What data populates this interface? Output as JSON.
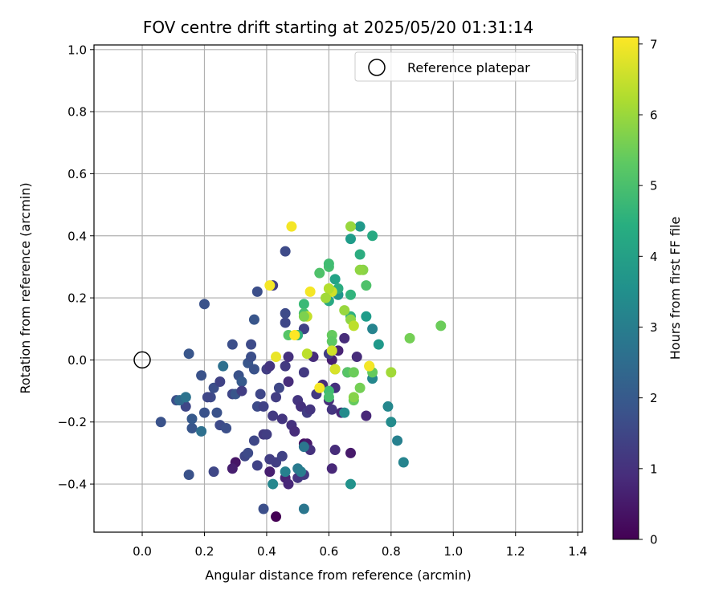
{
  "chart_data": {
    "type": "scatter",
    "title": "FOV centre drift starting at 2025/05/20 01:31:14",
    "xlabel": "Angular distance from reference (arcmin)",
    "ylabel": "Rotation from reference (arcmin)",
    "xlim": [
      -0.155,
      1.415
    ],
    "ylim": [
      -0.555,
      1.015
    ],
    "xticks": [
      "0.0",
      "0.2",
      "0.4",
      "0.6",
      "0.8",
      "1.0",
      "1.2",
      "1.4"
    ],
    "xtick_values": [
      0.0,
      0.2,
      0.4,
      0.6,
      0.8,
      1.0,
      1.2,
      1.4
    ],
    "yticks": [
      "−0.4",
      "−0.2",
      "0.0",
      "0.2",
      "0.4",
      "0.6",
      "0.8",
      "1.0"
    ],
    "ytick_values": [
      -0.4,
      -0.2,
      0.0,
      0.2,
      0.4,
      0.6,
      0.8,
      1.0
    ],
    "grid": true,
    "legend": {
      "position": "top-right",
      "entries": [
        "Reference platepar"
      ]
    },
    "reference": {
      "x": 0.0,
      "y": 0.0
    },
    "colorbar": {
      "label": "Hours from first FF file",
      "range": [
        0,
        7.1
      ],
      "ticks": [
        "0",
        "1",
        "2",
        "3",
        "4",
        "5",
        "6",
        "7"
      ],
      "tick_values": [
        0,
        1,
        2,
        3,
        4,
        5,
        6,
        7
      ],
      "colormap": "viridis"
    },
    "points": [
      [
        0.43,
        -0.505,
        0.0
      ],
      [
        0.52,
        -0.27,
        0.3
      ],
      [
        0.53,
        -0.27,
        0.5
      ],
      [
        0.3,
        -0.33,
        0.4
      ],
      [
        0.29,
        -0.35,
        0.6
      ],
      [
        0.46,
        -0.38,
        0.7
      ],
      [
        0.41,
        -0.36,
        0.6
      ],
      [
        0.47,
        -0.4,
        0.8
      ],
      [
        0.67,
        -0.3,
        0.5
      ],
      [
        0.61,
        -0.35,
        0.8
      ],
      [
        0.62,
        -0.29,
        0.9
      ],
      [
        0.54,
        -0.29,
        1.0
      ],
      [
        0.5,
        -0.38,
        1.1
      ],
      [
        0.52,
        -0.37,
        1.2
      ],
      [
        0.43,
        -0.33,
        1.3
      ],
      [
        0.45,
        -0.31,
        1.4
      ],
      [
        0.41,
        -0.32,
        1.3
      ],
      [
        0.39,
        -0.24,
        1.2
      ],
      [
        0.4,
        -0.24,
        1.3
      ],
      [
        0.36,
        -0.26,
        1.5
      ],
      [
        0.37,
        -0.34,
        1.4
      ],
      [
        0.33,
        -0.31,
        1.5
      ],
      [
        0.34,
        -0.3,
        1.6
      ],
      [
        0.39,
        -0.48,
        1.7
      ],
      [
        0.15,
        -0.37,
        1.8
      ],
      [
        0.23,
        -0.36,
        1.5
      ],
      [
        0.25,
        -0.21,
        1.6
      ],
      [
        0.27,
        -0.22,
        1.7
      ],
      [
        0.24,
        -0.17,
        1.8
      ],
      [
        0.16,
        -0.22,
        1.9
      ],
      [
        0.16,
        -0.19,
        2.0
      ],
      [
        0.19,
        -0.23,
        2.6
      ],
      [
        0.06,
        -0.2,
        1.8
      ],
      [
        0.11,
        -0.13,
        1.7
      ],
      [
        0.14,
        -0.15,
        1.5
      ],
      [
        0.14,
        -0.12,
        2.5
      ],
      [
        0.2,
        -0.17,
        1.8
      ],
      [
        0.22,
        -0.12,
        1.6
      ],
      [
        0.23,
        -0.09,
        1.7
      ],
      [
        0.25,
        -0.07,
        1.4
      ],
      [
        0.29,
        -0.11,
        1.5
      ],
      [
        0.3,
        -0.11,
        1.9
      ],
      [
        0.31,
        -0.05,
        1.8
      ],
      [
        0.32,
        -0.07,
        2.0
      ],
      [
        0.32,
        -0.1,
        1.3
      ],
      [
        0.34,
        -0.01,
        1.9
      ],
      [
        0.35,
        0.05,
        1.6
      ],
      [
        0.35,
        0.01,
        1.7
      ],
      [
        0.36,
        -0.03,
        1.8
      ],
      [
        0.37,
        -0.15,
        1.6
      ],
      [
        0.38,
        -0.11,
        1.5
      ],
      [
        0.39,
        -0.15,
        1.4
      ],
      [
        0.4,
        -0.03,
        1.3
      ],
      [
        0.41,
        -0.02,
        1.1
      ],
      [
        0.42,
        -0.18,
        1.2
      ],
      [
        0.43,
        -0.12,
        1.3
      ],
      [
        0.44,
        -0.09,
        1.5
      ],
      [
        0.45,
        -0.19,
        1.1
      ],
      [
        0.46,
        -0.02,
        1.2
      ],
      [
        0.47,
        0.01,
        1.0
      ],
      [
        0.47,
        -0.07,
        0.9
      ],
      [
        0.48,
        -0.21,
        1.0
      ],
      [
        0.49,
        -0.23,
        0.9
      ],
      [
        0.5,
        -0.13,
        1.1
      ],
      [
        0.51,
        -0.15,
        1.0
      ],
      [
        0.52,
        -0.04,
        1.2
      ],
      [
        0.53,
        -0.17,
        1.3
      ],
      [
        0.54,
        -0.16,
        1.1
      ],
      [
        0.55,
        0.01,
        0.9
      ],
      [
        0.56,
        -0.11,
        1.2
      ],
      [
        0.58,
        -0.08,
        0.9
      ],
      [
        0.6,
        -0.13,
        0.9
      ],
      [
        0.61,
        -0.16,
        1.1
      ],
      [
        0.62,
        -0.09,
        1.0
      ],
      [
        0.63,
        0.03,
        0.7
      ],
      [
        0.64,
        -0.17,
        0.8
      ],
      [
        0.65,
        0.07,
        0.9
      ],
      [
        0.66,
        -0.04,
        1.0
      ],
      [
        0.69,
        0.01,
        0.9
      ],
      [
        0.72,
        -0.18,
        0.8
      ],
      [
        0.61,
        0.0,
        0.6
      ],
      [
        0.6,
        0.02,
        1.3
      ],
      [
        0.52,
        0.1,
        1.2
      ],
      [
        0.52,
        0.1,
        1.4
      ],
      [
        0.46,
        0.12,
        1.5
      ],
      [
        0.46,
        0.15,
        1.6
      ],
      [
        0.42,
        0.24,
        1.3
      ],
      [
        0.37,
        0.22,
        1.7
      ],
      [
        0.46,
        0.35,
        1.6
      ],
      [
        0.36,
        0.13,
        1.9
      ],
      [
        0.2,
        0.18,
        1.8
      ],
      [
        0.15,
        0.02,
        1.9
      ],
      [
        0.19,
        -0.05,
        1.8
      ],
      [
        0.29,
        0.05,
        1.7
      ],
      [
        0.26,
        -0.02,
        2.6
      ],
      [
        0.21,
        -0.12,
        1.5
      ],
      [
        0.12,
        -0.13,
        2.4
      ],
      [
        0.14,
        -0.12,
        2.7
      ],
      [
        0.52,
        -0.28,
        2.8
      ],
      [
        0.5,
        -0.35,
        2.9
      ],
      [
        0.51,
        -0.36,
        3.0
      ],
      [
        0.42,
        -0.4,
        3.3
      ],
      [
        0.46,
        -0.36,
        3.1
      ],
      [
        0.52,
        -0.48,
        2.8
      ],
      [
        0.67,
        -0.4,
        3.6
      ],
      [
        0.8,
        -0.2,
        3.4
      ],
      [
        0.79,
        -0.15,
        3.3
      ],
      [
        0.82,
        -0.26,
        3.1
      ],
      [
        0.84,
        -0.33,
        3.2
      ],
      [
        0.65,
        -0.17,
        3.4
      ],
      [
        0.74,
        -0.06,
        3.3
      ],
      [
        0.74,
        0.1,
        3.2
      ],
      [
        0.72,
        0.14,
        3.9
      ],
      [
        0.76,
        0.05,
        3.8
      ],
      [
        0.63,
        0.21,
        3.7
      ],
      [
        0.62,
        0.26,
        4.1
      ],
      [
        0.63,
        0.23,
        4.4
      ],
      [
        0.6,
        0.19,
        4.3
      ],
      [
        0.67,
        0.14,
        4.5
      ],
      [
        0.67,
        0.21,
        4.6
      ],
      [
        0.7,
        0.34,
        4.4
      ],
      [
        0.67,
        0.39,
        3.9
      ],
      [
        0.7,
        0.43,
        3.8
      ],
      [
        0.74,
        0.4,
        4.3
      ],
      [
        0.6,
        0.3,
        5.0
      ],
      [
        0.6,
        0.31,
        4.9
      ],
      [
        0.57,
        0.28,
        5.1
      ],
      [
        0.52,
        0.18,
        4.8
      ],
      [
        0.52,
        0.15,
        5.0
      ],
      [
        0.5,
        0.08,
        4.5
      ],
      [
        0.47,
        0.08,
        5.2
      ],
      [
        0.61,
        0.08,
        5.4
      ],
      [
        0.61,
        0.06,
        5.3
      ],
      [
        0.6,
        -0.1,
        4.9
      ],
      [
        0.6,
        -0.12,
        5.0
      ],
      [
        0.62,
        -0.03,
        4.7
      ],
      [
        0.66,
        -0.04,
        5.2
      ],
      [
        0.68,
        -0.13,
        5.4
      ],
      [
        0.68,
        -0.12,
        5.8
      ],
      [
        0.68,
        -0.04,
        5.5
      ],
      [
        0.7,
        -0.09,
        5.6
      ],
      [
        0.73,
        -0.02,
        6.0
      ],
      [
        0.74,
        -0.04,
        5.4
      ],
      [
        0.8,
        -0.04,
        6.1
      ],
      [
        0.86,
        0.07,
        5.6
      ],
      [
        0.96,
        0.11,
        5.5
      ],
      [
        0.71,
        0.29,
        5.8
      ],
      [
        0.72,
        0.24,
        5.1
      ],
      [
        0.7,
        0.29,
        5.9
      ],
      [
        0.67,
        0.43,
        6.0
      ],
      [
        0.67,
        0.13,
        5.9
      ],
      [
        0.68,
        0.11,
        6.4
      ],
      [
        0.65,
        0.16,
        6.0
      ],
      [
        0.61,
        0.22,
        6.6
      ],
      [
        0.6,
        0.23,
        6.3
      ],
      [
        0.59,
        0.2,
        6.1
      ],
      [
        0.53,
        0.14,
        6.5
      ],
      [
        0.52,
        0.14,
        5.7
      ],
      [
        0.53,
        0.02,
        6.4
      ],
      [
        0.61,
        0.03,
        6.6
      ],
      [
        0.62,
        -0.03,
        6.7
      ],
      [
        0.73,
        -0.02,
        7.0
      ],
      [
        0.57,
        -0.09,
        7.0
      ],
      [
        0.54,
        0.22,
        7.0
      ],
      [
        0.49,
        0.08,
        7.1
      ],
      [
        0.43,
        0.01,
        6.9
      ],
      [
        0.41,
        0.24,
        7.0
      ],
      [
        0.48,
        0.43,
        7.0
      ]
    ]
  }
}
